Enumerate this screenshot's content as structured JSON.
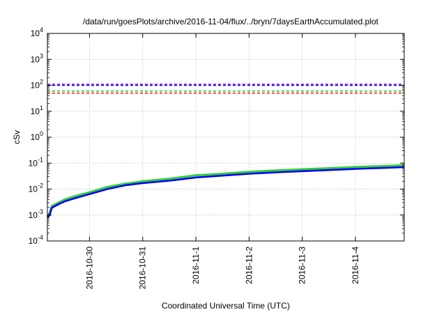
{
  "chart_data": {
    "type": "line",
    "title": "/data/run/goesPlots/archive/2016-11-04/flux/../bryn/7daysEarthAccumulated.plot",
    "xlabel": "Coordinated Universal Time (UTC)",
    "ylabel": "cSv",
    "y_scale": "log",
    "ylim": [
      0.0001,
      10000
    ],
    "y_ticks": [
      {
        "value": 0.0001,
        "base": "10",
        "exp": "-4"
      },
      {
        "value": 0.001,
        "base": "10",
        "exp": "-3"
      },
      {
        "value": 0.01,
        "base": "10",
        "exp": "-2"
      },
      {
        "value": 0.1,
        "base": "10",
        "exp": "-1"
      },
      {
        "value": 1,
        "base": "10",
        "exp": "0"
      },
      {
        "value": 10,
        "base": "10",
        "exp": "1"
      },
      {
        "value": 100,
        "base": "10",
        "exp": "2"
      },
      {
        "value": 1000,
        "base": "10",
        "exp": "3"
      },
      {
        "value": 10000,
        "base": "10",
        "exp": "4"
      }
    ],
    "xlim": [
      "2016-10-29T05:00",
      "2016-11-04T22:00"
    ],
    "x_ticks": [
      "2016-10-30",
      "2016-10-31",
      "2016-11-1",
      "2016-11-2",
      "2016-11-3",
      "2016-11-4"
    ],
    "x_tick_dates": [
      "2016-10-30T00:00",
      "2016-10-31T00:00",
      "2016-11-01T00:00",
      "2016-11-02T00:00",
      "2016-11-03T00:00",
      "2016-11-04T00:00"
    ],
    "grid": true,
    "thresholds": [
      {
        "y": 110,
        "color": "#9400d3",
        "style": "dashed"
      },
      {
        "y": 100,
        "color": "#0000ff",
        "style": "dashed"
      },
      {
        "y": 60,
        "color": "#00c000",
        "style": "dashed"
      },
      {
        "y": 50,
        "color": "#ff0000",
        "style": "dashed"
      }
    ],
    "series": [
      {
        "color": "#33cc33",
        "points": [
          [
            "2016-10-29T05:00",
            0.0009
          ],
          [
            "2016-10-29T06:00",
            0.0012
          ],
          [
            "2016-10-29T07:00",
            0.0022
          ],
          [
            "2016-10-29T10:00",
            0.003
          ],
          [
            "2016-10-29T13:00",
            0.004
          ],
          [
            "2016-10-29T18:00",
            0.0055
          ],
          [
            "2016-10-30T00:00",
            0.0075
          ],
          [
            "2016-10-30T08:00",
            0.012
          ],
          [
            "2016-10-30T16:00",
            0.016
          ],
          [
            "2016-10-31T00:00",
            0.02
          ],
          [
            "2016-10-31T12:00",
            0.025
          ],
          [
            "2016-11-01T00:00",
            0.034
          ],
          [
            "2016-11-01T12:00",
            0.039
          ],
          [
            "2016-11-02T00:00",
            0.046
          ],
          [
            "2016-11-02T12:00",
            0.052
          ],
          [
            "2016-11-03T00:00",
            0.058
          ],
          [
            "2016-11-03T12:00",
            0.064
          ],
          [
            "2016-11-04T00:00",
            0.071
          ],
          [
            "2016-11-04T12:00",
            0.077
          ],
          [
            "2016-11-04T22:00",
            0.083
          ]
        ]
      },
      {
        "color": "#0000ff",
        "points": [
          [
            "2016-10-29T05:00",
            0.0008
          ],
          [
            "2016-10-29T06:00",
            0.001
          ],
          [
            "2016-10-29T07:00",
            0.0019
          ],
          [
            "2016-10-29T10:00",
            0.0026
          ],
          [
            "2016-10-29T13:00",
            0.0034
          ],
          [
            "2016-10-29T18:00",
            0.0046
          ],
          [
            "2016-10-30T00:00",
            0.0064
          ],
          [
            "2016-10-30T08:00",
            0.01
          ],
          [
            "2016-10-30T16:00",
            0.014
          ],
          [
            "2016-10-31T00:00",
            0.017
          ],
          [
            "2016-10-31T12:00",
            0.021
          ],
          [
            "2016-11-01T00:00",
            0.028
          ],
          [
            "2016-11-01T12:00",
            0.033
          ],
          [
            "2016-11-02T00:00",
            0.039
          ],
          [
            "2016-11-02T12:00",
            0.044
          ],
          [
            "2016-11-03T00:00",
            0.049
          ],
          [
            "2016-11-03T12:00",
            0.054
          ],
          [
            "2016-11-04T00:00",
            0.06
          ],
          [
            "2016-11-04T12:00",
            0.065
          ],
          [
            "2016-11-04T22:00",
            0.07
          ]
        ]
      }
    ]
  }
}
